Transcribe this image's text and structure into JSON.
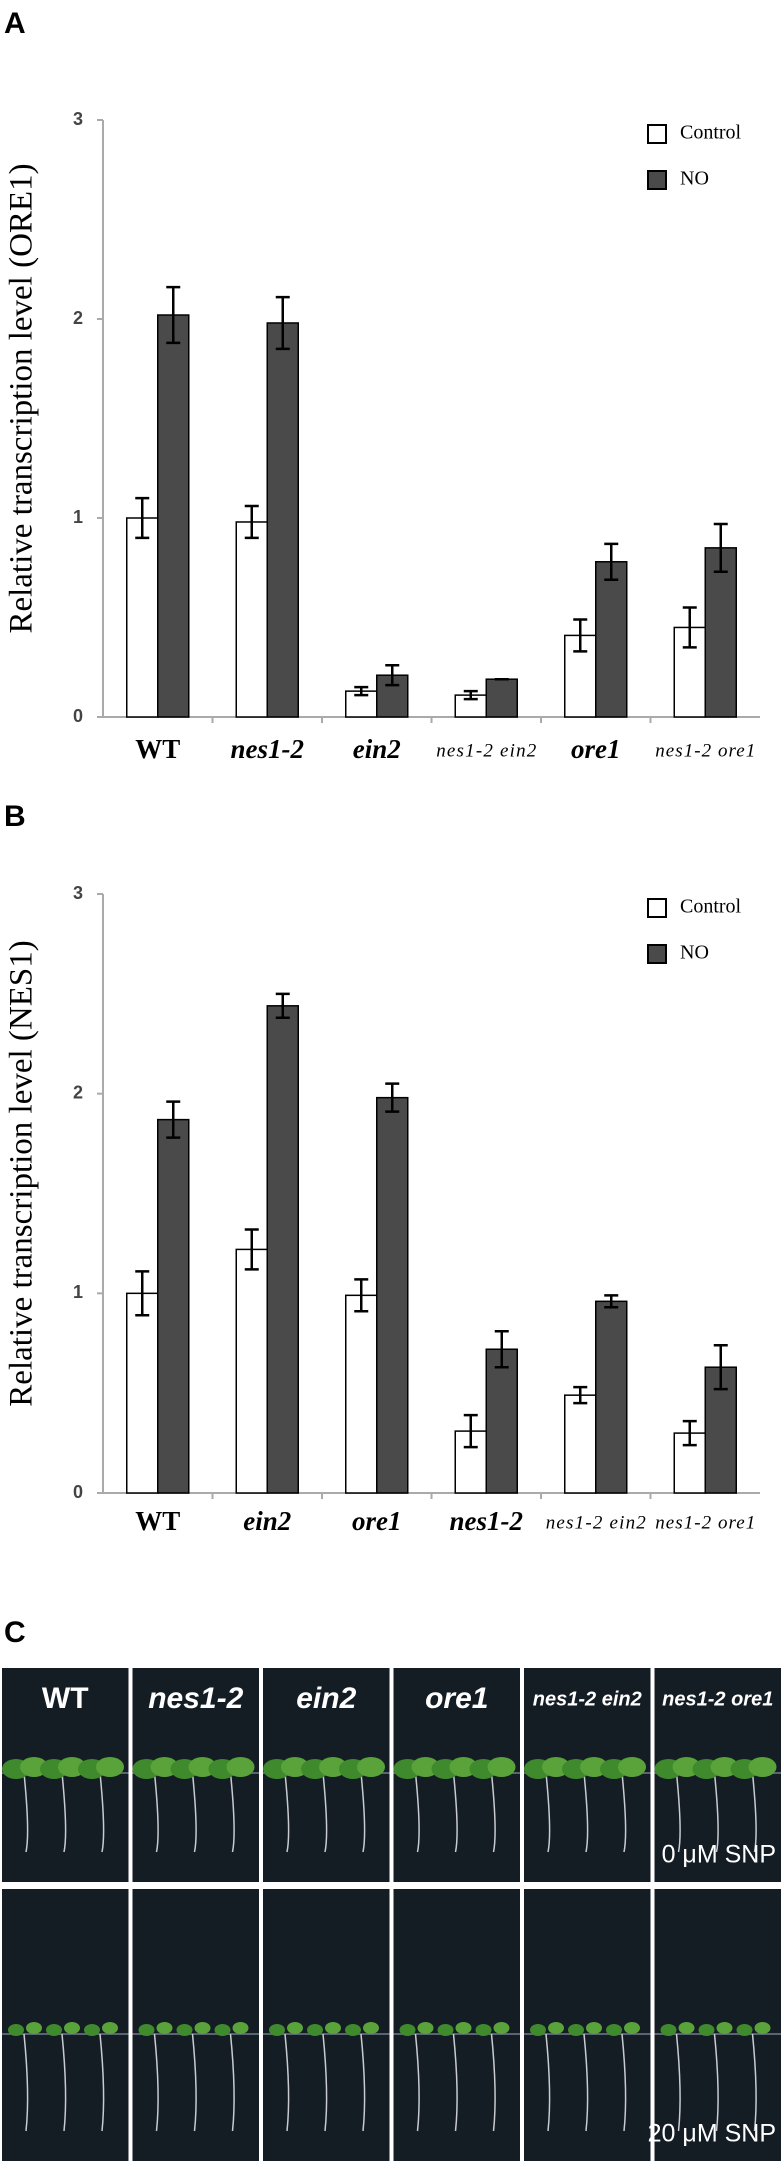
{
  "panel_labels": [
    "A",
    "B",
    "C"
  ],
  "chart_data": [
    {
      "type": "bar",
      "y_label": "Relative transcription level (ORE1)",
      "categories": [
        "WT",
        "nes1-2",
        "ein2",
        "nes1-2 ein2",
        "ore1",
        "nes1-2 ore1"
      ],
      "series": [
        {
          "name": "Control",
          "color": "#ffffff",
          "values": [
            1.0,
            0.98,
            0.13,
            0.11,
            0.41,
            0.45
          ],
          "errors": [
            0.1,
            0.08,
            0.02,
            0.02,
            0.08,
            0.1
          ]
        },
        {
          "name": "NO",
          "color": "#4a4a4a",
          "values": [
            2.02,
            1.98,
            0.21,
            0.19,
            0.78,
            0.85
          ],
          "errors": [
            0.14,
            0.13,
            0.05,
            0,
            0.09,
            0.12
          ]
        }
      ],
      "ylim": [
        0,
        3
      ],
      "yticks": [
        0,
        1,
        2,
        3
      ],
      "legend": "upper-right"
    },
    {
      "type": "bar",
      "y_label": "Relative transcription level (NES1)",
      "categories": [
        "WT",
        "ein2",
        "ore1",
        "nes1-2",
        "nes1-2 ein2",
        "nes1-2 ore1"
      ],
      "series": [
        {
          "name": "Control",
          "color": "#ffffff",
          "values": [
            1.0,
            1.22,
            0.99,
            0.31,
            0.49,
            0.3
          ],
          "errors": [
            0.11,
            0.1,
            0.08,
            0.08,
            0.04,
            0.06
          ]
        },
        {
          "name": "NO",
          "color": "#4a4a4a",
          "values": [
            1.87,
            2.44,
            1.98,
            0.72,
            0.96,
            0.63
          ],
          "errors": [
            0.09,
            0.06,
            0.07,
            0.09,
            0.03,
            0.11
          ]
        }
      ],
      "ylim": [
        0,
        3
      ],
      "yticks": [
        0,
        1,
        2,
        3
      ],
      "legend": "upper-right"
    }
  ],
  "photo_panel": {
    "columns": [
      "WT",
      "nes1-2",
      "ein2",
      "ore1",
      "nes1-2 ein2",
      "nes1-2 ore1"
    ],
    "rows": [
      "0 μM SNP",
      "20 μM SNP"
    ]
  }
}
